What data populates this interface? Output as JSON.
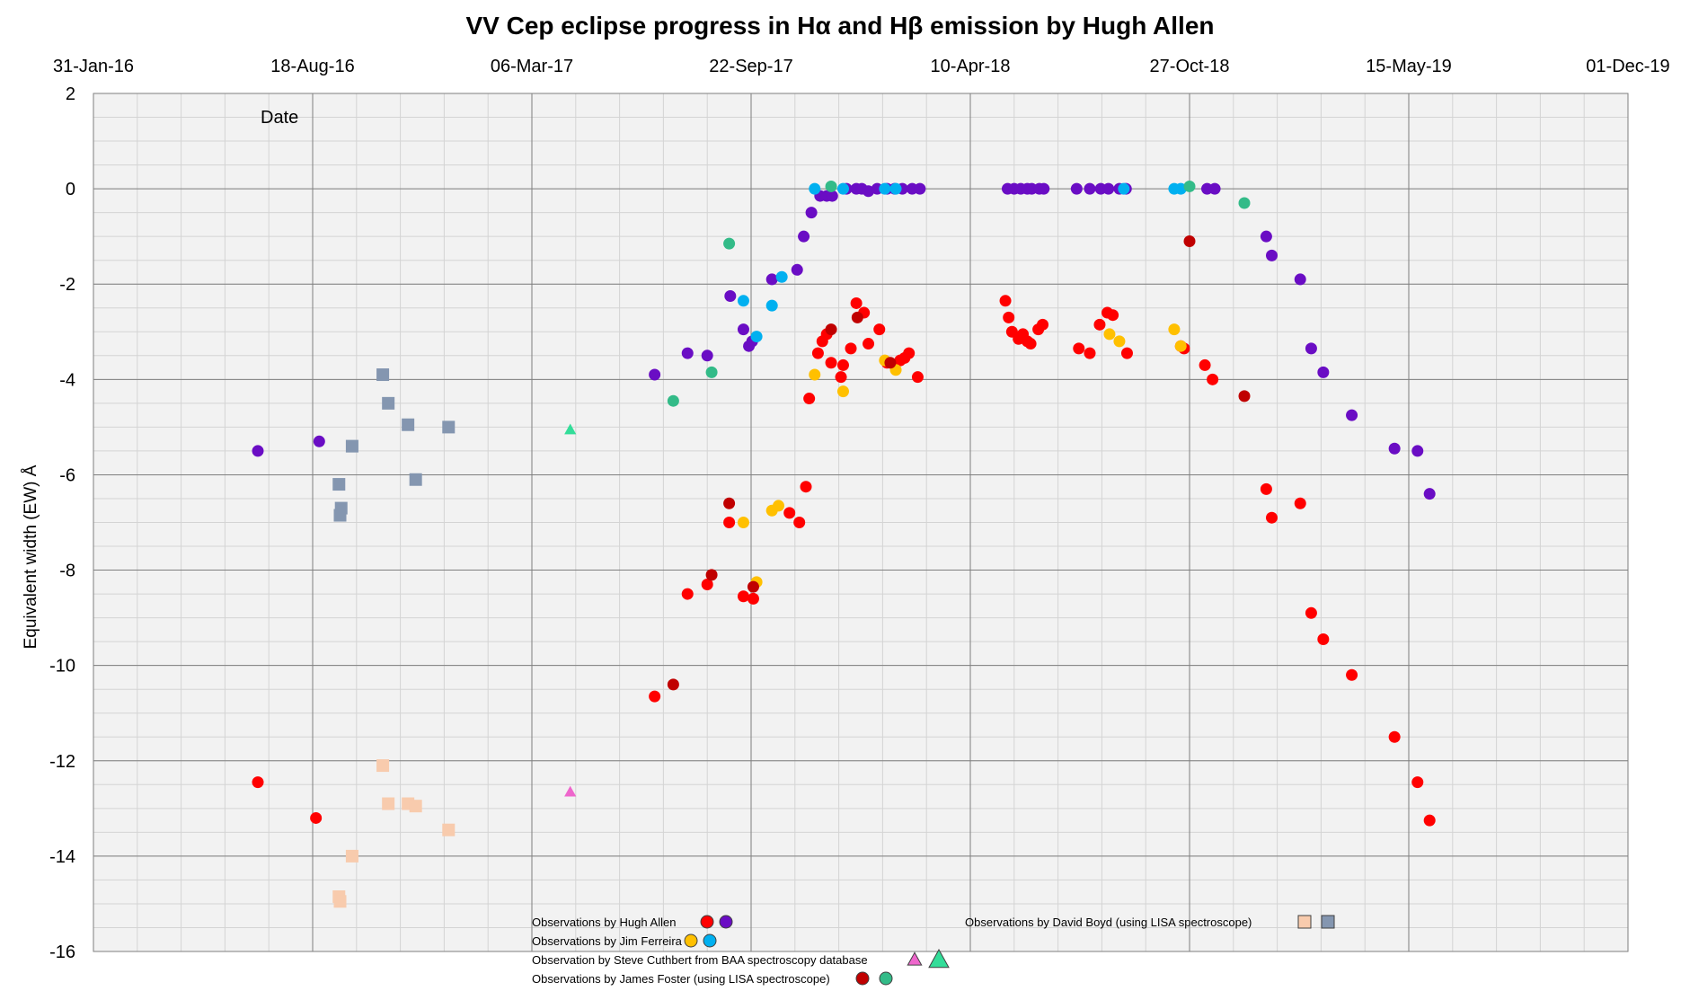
{
  "chart_data": {
    "type": "scatter",
    "title": "VV Cep eclipse progress in Hα and Hβ emission by Hugh Allen",
    "xlabel": "Date",
    "ylabel": "Equivalent width (EW)  Å",
    "x_axis_position": "top",
    "xlim": [
      "2016-01-31",
      "2019-12-01"
    ],
    "ylim": [
      -16,
      2
    ],
    "x_ticks": [
      {
        "date": "2016-01-31",
        "label": "31-Jan-16"
      },
      {
        "date": "2016-08-18",
        "label": "18-Aug-16"
      },
      {
        "date": "2017-03-06",
        "label": "06-Mar-17"
      },
      {
        "date": "2017-09-22",
        "label": "22-Sep-17"
      },
      {
        "date": "2018-04-10",
        "label": "10-Apr-18"
      },
      {
        "date": "2018-10-27",
        "label": "27-Oct-18"
      },
      {
        "date": "2019-05-15",
        "label": "15-May-19"
      },
      {
        "date": "2019-12-01",
        "label": "01-Dec-19"
      }
    ],
    "y_ticks": [
      2,
      0,
      -2,
      -4,
      -6,
      -8,
      -10,
      -12,
      -14,
      -16
    ],
    "grid": true,
    "colors": {
      "ha_allen": "#ff0000",
      "hb_allen": "#6a0dc4",
      "ha_ferreira": "#ffc000",
      "hb_ferreira": "#00b0f0",
      "ha_cuthbert": "#ee66cc",
      "hb_cuthbert": "#33dd99",
      "ha_foster": "#c00000",
      "hb_foster": "#33bb88",
      "ha_boyd": "#f8cbad",
      "hb_boyd": "#8496b0",
      "grid_major": "#7f7f7f",
      "grid_minor": "#d4d4d4",
      "plot_bg": "#f2f2f2"
    },
    "series": [
      {
        "name": "Hα Hugh Allen",
        "marker": "circle",
        "color": "#ff0000",
        "points": [
          [
            "2016-06-29",
            -12.45
          ],
          [
            "2016-08-21",
            -13.2
          ],
          [
            "2017-06-26",
            -10.65
          ],
          [
            "2017-07-26",
            -8.5
          ],
          [
            "2017-08-13",
            -8.3
          ],
          [
            "2017-09-02",
            -7.0
          ],
          [
            "2017-09-15",
            -8.55
          ],
          [
            "2017-09-24",
            -8.6
          ],
          [
            "2017-10-27",
            -6.8
          ],
          [
            "2017-11-05",
            -7.0
          ],
          [
            "2017-11-11",
            -6.25
          ],
          [
            "2017-11-14",
            -4.4
          ],
          [
            "2017-11-22",
            -3.45
          ],
          [
            "2017-11-26",
            -3.2
          ],
          [
            "2017-11-30",
            -3.05
          ],
          [
            "2017-12-04",
            -3.65
          ],
          [
            "2017-12-13",
            -3.95
          ],
          [
            "2017-12-15",
            -3.7
          ],
          [
            "2017-12-22",
            -3.35
          ],
          [
            "2017-12-27",
            -2.4
          ],
          [
            "2018-01-03",
            -2.6
          ],
          [
            "2018-01-07",
            -3.25
          ],
          [
            "2018-01-17",
            -2.95
          ],
          [
            "2018-01-24",
            -3.65
          ],
          [
            "2018-02-05",
            -3.6
          ],
          [
            "2018-02-09",
            -3.55
          ],
          [
            "2018-02-13",
            -3.45
          ],
          [
            "2018-02-21",
            -3.95
          ],
          [
            "2018-05-12",
            -2.35
          ],
          [
            "2018-05-15",
            -2.7
          ],
          [
            "2018-05-18",
            -3.0
          ],
          [
            "2018-05-24",
            -3.15
          ],
          [
            "2018-05-28",
            -3.05
          ],
          [
            "2018-06-01",
            -3.2
          ],
          [
            "2018-06-04",
            -3.25
          ],
          [
            "2018-06-11",
            -2.95
          ],
          [
            "2018-06-15",
            -2.85
          ],
          [
            "2018-07-18",
            -3.35
          ],
          [
            "2018-07-28",
            -3.45
          ],
          [
            "2018-08-06",
            -2.85
          ],
          [
            "2018-08-13",
            -2.6
          ],
          [
            "2018-08-18",
            -2.65
          ],
          [
            "2018-08-31",
            -3.45
          ],
          [
            "2018-10-19",
            -3.3
          ],
          [
            "2018-10-22",
            -3.35
          ],
          [
            "2018-11-10",
            -3.7
          ],
          [
            "2018-11-17",
            -4.0
          ],
          [
            "2019-01-05",
            -6.3
          ],
          [
            "2019-01-10",
            -6.9
          ],
          [
            "2019-02-05",
            -6.6
          ],
          [
            "2019-02-15",
            -8.9
          ],
          [
            "2019-02-26",
            -9.45
          ],
          [
            "2019-03-24",
            -10.2
          ],
          [
            "2019-05-02",
            -11.5
          ],
          [
            "2019-05-23",
            -12.45
          ],
          [
            "2019-06-03",
            -13.25
          ]
        ]
      },
      {
        "name": "Hβ Hugh Allen",
        "marker": "circle",
        "color": "#6a0dc4",
        "points": [
          [
            "2016-06-29",
            -5.5
          ],
          [
            "2016-08-24",
            -5.3
          ],
          [
            "2017-06-26",
            -3.9
          ],
          [
            "2017-07-26",
            -3.45
          ],
          [
            "2017-08-13",
            -3.5
          ],
          [
            "2017-09-03",
            -2.25
          ],
          [
            "2017-09-15",
            -2.95
          ],
          [
            "2017-09-20",
            -3.3
          ],
          [
            "2017-09-23",
            -3.2
          ],
          [
            "2017-10-11",
            -1.9
          ],
          [
            "2017-11-03",
            -1.7
          ],
          [
            "2017-11-09",
            -1.0
          ],
          [
            "2017-11-16",
            -0.5
          ],
          [
            "2017-11-24",
            -0.15
          ],
          [
            "2017-11-30",
            -0.15
          ],
          [
            "2017-12-05",
            -0.15
          ],
          [
            "2017-12-18",
            0.0
          ],
          [
            "2017-12-27",
            0.0
          ],
          [
            "2018-01-01",
            0.0
          ],
          [
            "2018-01-07",
            -0.05
          ],
          [
            "2018-01-15",
            0.0
          ],
          [
            "2018-01-24",
            0.0
          ],
          [
            "2018-01-31",
            0.0
          ],
          [
            "2018-02-07",
            0.0
          ],
          [
            "2018-02-16",
            0.0
          ],
          [
            "2018-02-23",
            0.0
          ],
          [
            "2018-05-14",
            0.0
          ],
          [
            "2018-05-20",
            0.0
          ],
          [
            "2018-05-26",
            0.0
          ],
          [
            "2018-06-01",
            0.0
          ],
          [
            "2018-06-05",
            0.0
          ],
          [
            "2018-06-12",
            0.0
          ],
          [
            "2018-06-16",
            0.0
          ],
          [
            "2018-07-16",
            0.0
          ],
          [
            "2018-07-28",
            0.0
          ],
          [
            "2018-08-07",
            0.0
          ],
          [
            "2018-08-14",
            0.0
          ],
          [
            "2018-08-24",
            0.0
          ],
          [
            "2018-08-30",
            0.0
          ],
          [
            "2018-11-12",
            0.0
          ],
          [
            "2018-11-19",
            0.0
          ],
          [
            "2019-01-05",
            -1.0
          ],
          [
            "2019-01-10",
            -1.4
          ],
          [
            "2019-02-05",
            -1.9
          ],
          [
            "2019-02-15",
            -3.35
          ],
          [
            "2019-02-26",
            -3.85
          ],
          [
            "2019-03-24",
            -4.75
          ],
          [
            "2019-05-02",
            -5.45
          ],
          [
            "2019-05-23",
            -5.5
          ],
          [
            "2019-06-03",
            -6.4
          ]
        ]
      },
      {
        "name": "Hα Jim Ferreira",
        "marker": "circle",
        "color": "#ffc000",
        "points": [
          [
            "2017-09-15",
            -7.0
          ],
          [
            "2017-09-27",
            -8.25
          ],
          [
            "2017-10-11",
            -6.75
          ],
          [
            "2017-10-17",
            -6.65
          ],
          [
            "2017-11-19",
            -3.9
          ],
          [
            "2017-12-15",
            -4.25
          ],
          [
            "2018-01-22",
            -3.6
          ],
          [
            "2018-02-01",
            -3.8
          ],
          [
            "2018-08-15",
            -3.05
          ],
          [
            "2018-08-24",
            -3.2
          ],
          [
            "2018-10-13",
            -2.95
          ],
          [
            "2018-10-19",
            -3.3
          ]
        ]
      },
      {
        "name": "Hβ Jim Ferreira",
        "marker": "circle",
        "color": "#00b0f0",
        "points": [
          [
            "2017-09-15",
            -2.35
          ],
          [
            "2017-09-27",
            -3.1
          ],
          [
            "2017-10-11",
            -2.45
          ],
          [
            "2017-10-20",
            -1.85
          ],
          [
            "2017-11-19",
            0.0
          ],
          [
            "2017-12-15",
            0.0
          ],
          [
            "2018-01-22",
            0.0
          ],
          [
            "2018-02-01",
            0.0
          ],
          [
            "2018-08-28",
            0.0
          ],
          [
            "2018-10-13",
            0.0
          ],
          [
            "2018-10-19",
            0.0
          ]
        ]
      },
      {
        "name": "Hα Steve Cuthbert",
        "marker": "triangle",
        "color": "#ee66cc",
        "points": [
          [
            "2017-04-10",
            -12.65
          ]
        ]
      },
      {
        "name": "Hβ Steve Cuthbert",
        "marker": "triangle",
        "color": "#33dd99",
        "points": [
          [
            "2017-04-10",
            -5.05
          ]
        ]
      },
      {
        "name": "Hα James Foster",
        "marker": "circle",
        "color": "#c00000",
        "points": [
          [
            "2017-07-13",
            -10.4
          ],
          [
            "2017-08-17",
            -8.1
          ],
          [
            "2017-09-02",
            -6.6
          ],
          [
            "2017-09-24",
            -8.35
          ],
          [
            "2017-12-04",
            -2.95
          ],
          [
            "2017-12-28",
            -2.7
          ],
          [
            "2018-01-27",
            -3.65
          ],
          [
            "2018-10-27",
            -1.1
          ],
          [
            "2018-12-16",
            -4.35
          ]
        ]
      },
      {
        "name": "Hβ James Foster",
        "marker": "circle",
        "color": "#33bb88",
        "points": [
          [
            "2017-07-13",
            -4.45
          ],
          [
            "2017-08-17",
            -3.85
          ],
          [
            "2017-09-02",
            -1.15
          ],
          [
            "2017-12-04",
            0.05
          ],
          [
            "2018-10-27",
            0.05
          ],
          [
            "2018-12-16",
            -0.3
          ]
        ]
      },
      {
        "name": "Hα David Boyd",
        "marker": "square",
        "color": "#f8cbad",
        "points": [
          [
            "2016-09-11",
            -14.85
          ],
          [
            "2016-09-12",
            -14.95
          ],
          [
            "2016-09-23",
            -14.0
          ],
          [
            "2016-10-21",
            -12.1
          ],
          [
            "2016-10-26",
            -12.9
          ],
          [
            "2016-11-13",
            -12.9
          ],
          [
            "2016-11-20",
            -12.95
          ],
          [
            "2016-12-20",
            -13.45
          ]
        ]
      },
      {
        "name": "Hβ David Boyd",
        "marker": "square",
        "color": "#8496b0",
        "points": [
          [
            "2016-09-11",
            -6.2
          ],
          [
            "2016-09-13",
            -6.7
          ],
          [
            "2016-09-12",
            -6.85
          ],
          [
            "2016-09-23",
            -5.4
          ],
          [
            "2016-10-21",
            -3.9
          ],
          [
            "2016-10-26",
            -4.5
          ],
          [
            "2016-11-13",
            -4.95
          ],
          [
            "2016-11-20",
            -6.1
          ],
          [
            "2016-12-20",
            -5.0
          ]
        ]
      }
    ]
  },
  "legend": {
    "items": [
      {
        "label": "Observations by Hugh Allen",
        "marker": "circle",
        "colors": [
          "#ff0000",
          "#6a0dc4"
        ]
      },
      {
        "label": "Observations by Jim Ferreira",
        "marker": "circle",
        "colors": [
          "#ffc000",
          "#00b0f0"
        ]
      },
      {
        "label": "Observation by Steve Cuthbert from BAA spectroscopy database",
        "marker": "triangle",
        "colors": [
          "#ee66cc",
          "#33dd99"
        ]
      },
      {
        "label": "Observations by James Foster (using LISA spectroscope)",
        "marker": "circle",
        "colors": [
          "#c00000",
          "#33bb88"
        ]
      },
      {
        "label": "Observations by David Boyd (using LISA spectroscope)",
        "marker": "square",
        "colors": [
          "#f8cbad",
          "#8496b0"
        ]
      }
    ]
  }
}
